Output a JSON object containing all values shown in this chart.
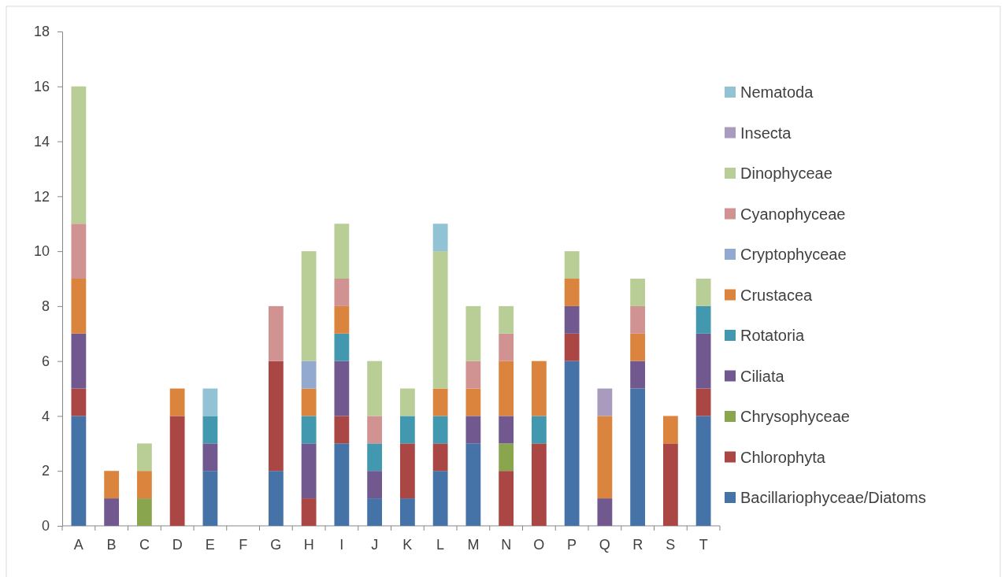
{
  "chart_data": {
    "type": "bar",
    "stacked": true,
    "categories": [
      "A",
      "B",
      "C",
      "D",
      "E",
      "F",
      "G",
      "H",
      "I",
      "J",
      "K",
      "L",
      "M",
      "N",
      "O",
      "P",
      "Q",
      "R",
      "S",
      "T"
    ],
    "ylim": [
      0,
      18
    ],
    "yticks": [
      0,
      2,
      4,
      6,
      8,
      10,
      12,
      14,
      16,
      18
    ],
    "grid": false,
    "legend": "right",
    "series": [
      {
        "name": "Bacillariophyceae/Diatoms",
        "color": "#4572a7",
        "values": [
          4,
          null,
          null,
          null,
          2,
          null,
          2,
          null,
          3,
          1,
          1,
          2,
          3,
          null,
          null,
          6,
          null,
          5,
          null,
          4
        ]
      },
      {
        "name": "Chlorophyta",
        "color": "#aa4643",
        "values": [
          1,
          null,
          null,
          4,
          null,
          null,
          4,
          1,
          1,
          null,
          2,
          1,
          null,
          2,
          3,
          1,
          null,
          null,
          3,
          1
        ]
      },
      {
        "name": "Chrysophyceae",
        "color": "#89a54e",
        "values": [
          null,
          null,
          1,
          null,
          null,
          null,
          null,
          null,
          null,
          null,
          null,
          null,
          null,
          1,
          null,
          null,
          null,
          null,
          null,
          null
        ]
      },
      {
        "name": "Ciliata",
        "color": "#71588f",
        "values": [
          2,
          1,
          null,
          null,
          1,
          null,
          null,
          2,
          2,
          1,
          null,
          null,
          1,
          1,
          null,
          1,
          1,
          1,
          null,
          2
        ]
      },
      {
        "name": "Rotatoria",
        "color": "#4198af",
        "values": [
          null,
          null,
          null,
          null,
          1,
          null,
          null,
          1,
          1,
          1,
          1,
          1,
          null,
          null,
          1,
          null,
          null,
          null,
          null,
          1
        ]
      },
      {
        "name": "Crustacea",
        "color": "#db843d",
        "values": [
          2,
          1,
          1,
          1,
          null,
          null,
          null,
          1,
          1,
          null,
          null,
          1,
          1,
          2,
          2,
          1,
          3,
          1,
          1,
          null
        ]
      },
      {
        "name": "Cryptophyceae",
        "color": "#93a9cf",
        "values": [
          null,
          null,
          null,
          null,
          null,
          null,
          null,
          1,
          null,
          null,
          null,
          null,
          null,
          null,
          null,
          null,
          null,
          null,
          null,
          null
        ]
      },
      {
        "name": "Cyanophyceae",
        "color": "#d19392",
        "values": [
          2,
          null,
          null,
          null,
          null,
          null,
          2,
          null,
          1,
          1,
          null,
          null,
          1,
          1,
          null,
          null,
          null,
          1,
          null,
          null
        ]
      },
      {
        "name": "Dinophyceae",
        "color": "#b9cd96",
        "values": [
          5,
          null,
          1,
          null,
          null,
          null,
          null,
          4,
          2,
          2,
          1,
          5,
          2,
          1,
          null,
          1,
          null,
          1,
          null,
          1
        ]
      },
      {
        "name": "Insecta",
        "color": "#a99bbd",
        "values": [
          null,
          null,
          null,
          null,
          null,
          null,
          null,
          null,
          null,
          null,
          null,
          null,
          null,
          null,
          null,
          null,
          1,
          null,
          null,
          null
        ]
      },
      {
        "name": "Nematoda",
        "color": "#92c3d4",
        "values": [
          null,
          null,
          null,
          null,
          1,
          null,
          null,
          null,
          null,
          null,
          null,
          1,
          null,
          null,
          null,
          null,
          null,
          null,
          null,
          null
        ]
      }
    ]
  }
}
